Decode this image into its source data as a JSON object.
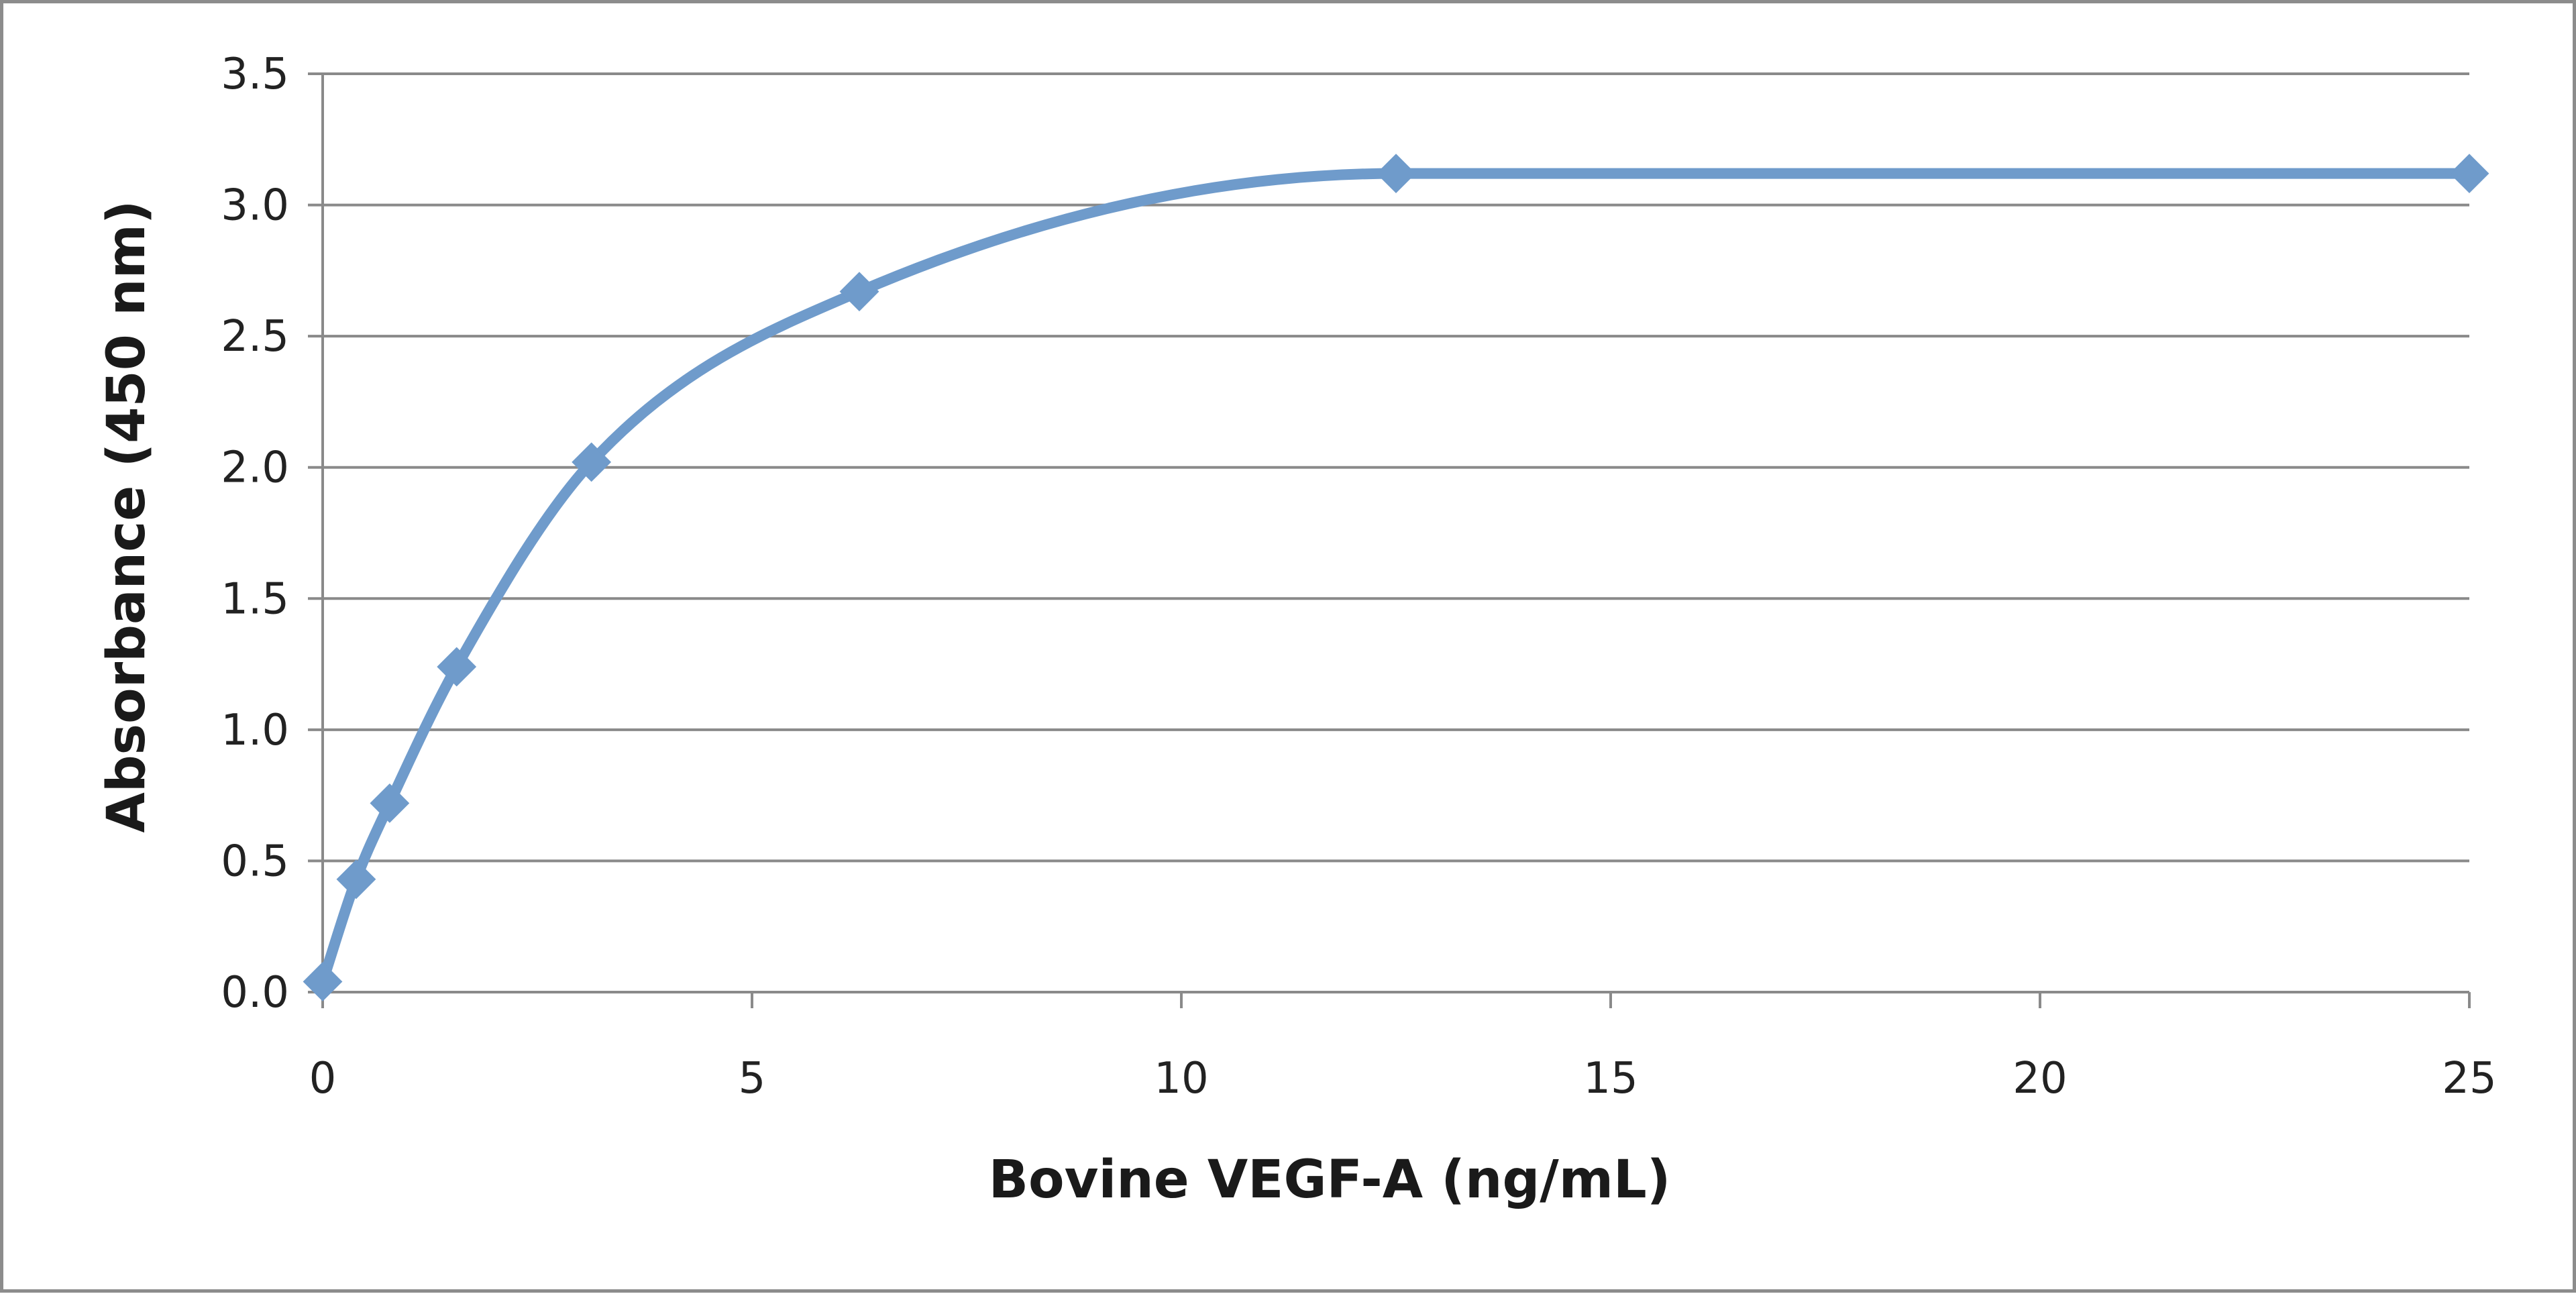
{
  "chart_data": {
    "type": "line",
    "title": "",
    "xlabel": "Bovine VEGF-A (ng/mL)",
    "ylabel": "Absorbance  (450 nm)",
    "xlim": [
      0,
      25
    ],
    "ylim": [
      0,
      3.5
    ],
    "x_ticks": [
      "0",
      "5",
      "10",
      "15",
      "20",
      "25"
    ],
    "y_ticks": [
      "0.0",
      "0.5",
      "1.0",
      "1.5",
      "2.0",
      "2.5",
      "3.0",
      "3.5"
    ],
    "grid": "horizontal",
    "legend": "none",
    "smoothed": true,
    "marker": "diamond",
    "series": [
      {
        "color": "#6f9bcb",
        "x": [
          0,
          0.39,
          0.78,
          1.56,
          3.13,
          6.25,
          12.5,
          25
        ],
        "values": [
          0.04,
          0.43,
          0.72,
          1.24,
          2.02,
          2.67,
          3.12,
          3.12
        ]
      }
    ]
  }
}
